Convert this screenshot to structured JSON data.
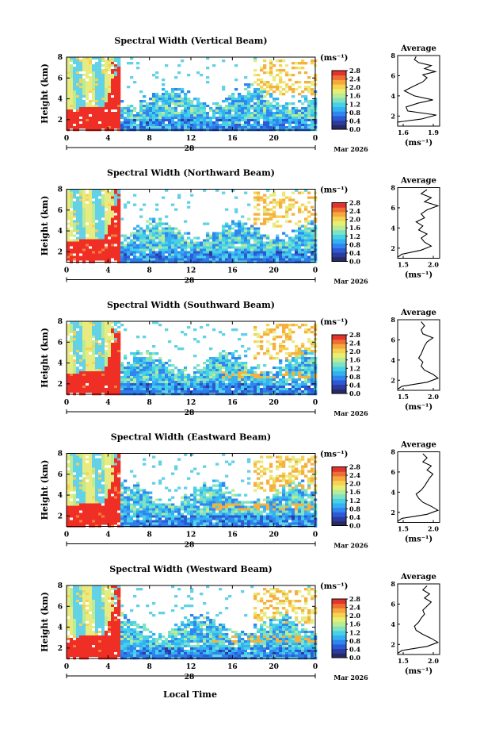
{
  "figure": {
    "xlabel_bottom": "Local Time",
    "average_title": "Average",
    "unit_label": "(ms⁻¹)",
    "date_day": "28",
    "date_month": "Mar 2026"
  },
  "colors": {
    "colorbar": [
      "#262a66",
      "#2d3b9c",
      "#2c5ad6",
      "#2f86ee",
      "#35b0f2",
      "#46d2e6",
      "#7fe3c3",
      "#b9ec95",
      "#e6ef72",
      "#f6d253",
      "#f6a83c",
      "#ee6f33",
      "#e2332c"
    ],
    "red": "#ef2f25",
    "yellow": "#e8ec80",
    "cyan": "#64d2e6",
    "blue": "#2e7de8",
    "orange": "#f6b040"
  },
  "chart_data": [
    {
      "type": "heatmap",
      "title": "Spectral Width (Vertical Beam)",
      "ylabel": "Height (km)",
      "x_ticks": [
        "0",
        "4",
        "8",
        "12",
        "16",
        "20",
        "0"
      ],
      "y_ticks": [
        "2",
        "4",
        "6",
        "8"
      ],
      "xlim": [
        0,
        24
      ],
      "ylim": [
        1,
        8
      ],
      "colorbar": {
        "label": "(ms⁻¹)",
        "ticks": [
          "2.8",
          "2.4",
          "2.0",
          "1.6",
          "1.2",
          "0.8",
          "0.4",
          "0.0"
        ],
        "range": [
          0.0,
          2.8
        ]
      },
      "average": {
        "x_ticks": [
          "1.6",
          "1.9"
        ],
        "xlim": [
          1.5,
          2.0
        ],
        "y_ticks": [
          "2",
          "4",
          "6",
          "8"
        ],
        "xlabel": "(ms⁻¹)",
        "profile": [
          [
            1.45,
            1.1
          ],
          [
            1.5,
            1.4
          ],
          [
            1.78,
            1.7
          ],
          [
            1.96,
            2.1
          ],
          [
            1.62,
            2.5
          ],
          [
            1.6,
            2.9
          ],
          [
            1.75,
            3.3
          ],
          [
            1.92,
            3.6
          ],
          [
            1.7,
            4.0
          ],
          [
            1.58,
            4.5
          ],
          [
            1.7,
            5.0
          ],
          [
            1.8,
            5.4
          ],
          [
            1.85,
            5.8
          ],
          [
            1.8,
            6.1
          ],
          [
            1.95,
            6.4
          ],
          [
            1.82,
            6.7
          ],
          [
            1.9,
            7.0
          ],
          [
            1.75,
            7.3
          ],
          [
            1.7,
            7.6
          ],
          [
            1.72,
            7.9
          ]
        ]
      }
    },
    {
      "type": "heatmap",
      "title": "Spectral Width (Northward Beam)",
      "ylabel": "Height (km)",
      "x_ticks": [
        "0",
        "4",
        "8",
        "12",
        "16",
        "20",
        "0"
      ],
      "y_ticks": [
        "2",
        "4",
        "6",
        "8"
      ],
      "xlim": [
        0,
        24
      ],
      "ylim": [
        1,
        8
      ],
      "colorbar": {
        "label": "(ms⁻¹)",
        "ticks": [
          "2.8",
          "2.4",
          "2.0",
          "1.6",
          "1.2",
          "0.8",
          "0.4",
          "0.0"
        ],
        "range": [
          0.0,
          2.8
        ]
      },
      "average": {
        "x_ticks": [
          "1.5",
          "2.0"
        ],
        "xlim": [
          1.5,
          2.0
        ],
        "y_ticks": [
          "2",
          "4",
          "6",
          "8"
        ],
        "xlabel": "(ms⁻¹)",
        "profile": [
          [
            1.45,
            1.1
          ],
          [
            1.55,
            1.4
          ],
          [
            1.78,
            1.8
          ],
          [
            1.9,
            2.2
          ],
          [
            1.82,
            2.6
          ],
          [
            1.78,
            3.0
          ],
          [
            1.85,
            3.4
          ],
          [
            1.75,
            3.8
          ],
          [
            1.8,
            4.2
          ],
          [
            1.72,
            4.6
          ],
          [
            1.82,
            5.0
          ],
          [
            1.78,
            5.4
          ],
          [
            1.85,
            5.8
          ],
          [
            1.98,
            6.2
          ],
          [
            1.82,
            6.6
          ],
          [
            1.9,
            7.0
          ],
          [
            1.78,
            7.4
          ],
          [
            1.85,
            7.8
          ]
        ]
      }
    },
    {
      "type": "heatmap",
      "title": "Spectral Width (Southward Beam)",
      "ylabel": "Height (km)",
      "x_ticks": [
        "0",
        "4",
        "8",
        "12",
        "16",
        "20",
        "0"
      ],
      "y_ticks": [
        "2",
        "4",
        "6",
        "8"
      ],
      "xlim": [
        0,
        24
      ],
      "ylim": [
        1,
        8
      ],
      "colorbar": {
        "label": "(ms⁻¹)",
        "ticks": [
          "2.8",
          "2.4",
          "2.0",
          "1.6",
          "1.2",
          "0.8",
          "0.4",
          "0.0"
        ],
        "range": [
          0.0,
          2.8
        ]
      },
      "average": {
        "x_ticks": [
          "1.5",
          "2.0"
        ],
        "xlim": [
          1.5,
          2.0
        ],
        "y_ticks": [
          "2",
          "4",
          "6",
          "8"
        ],
        "xlabel": "(ms⁻¹)",
        "profile": [
          [
            1.45,
            1.1
          ],
          [
            1.55,
            1.4
          ],
          [
            1.85,
            1.8
          ],
          [
            1.98,
            2.2
          ],
          [
            1.92,
            2.6
          ],
          [
            1.82,
            3.0
          ],
          [
            1.78,
            3.4
          ],
          [
            1.8,
            3.8
          ],
          [
            1.75,
            4.2
          ],
          [
            1.78,
            4.6
          ],
          [
            1.8,
            5.0
          ],
          [
            1.82,
            5.4
          ],
          [
            1.85,
            5.8
          ],
          [
            1.92,
            6.2
          ],
          [
            1.8,
            6.6
          ],
          [
            1.78,
            7.0
          ],
          [
            1.82,
            7.4
          ],
          [
            1.78,
            7.8
          ]
        ]
      }
    },
    {
      "type": "heatmap",
      "title": "Spectral Width (Eastward Beam)",
      "ylabel": "Height (km)",
      "x_ticks": [
        "0",
        "4",
        "8",
        "12",
        "16",
        "20",
        "0"
      ],
      "y_ticks": [
        "2",
        "4",
        "6",
        "8"
      ],
      "xlim": [
        0,
        24
      ],
      "ylim": [
        1,
        8
      ],
      "colorbar": {
        "label": "(ms⁻¹)",
        "ticks": [
          "2.8",
          "2.4",
          "2.0",
          "1.6",
          "1.2",
          "0.8",
          "0.4",
          "0.0"
        ],
        "range": [
          0.0,
          2.8
        ]
      },
      "average": {
        "x_ticks": [
          "1.5",
          "2.0"
        ],
        "xlim": [
          1.5,
          2.0
        ],
        "y_ticks": [
          "2",
          "4",
          "6",
          "8"
        ],
        "xlabel": "(ms⁻¹)",
        "profile": [
          [
            1.45,
            1.1
          ],
          [
            1.55,
            1.4
          ],
          [
            1.85,
            1.8
          ],
          [
            1.98,
            2.2
          ],
          [
            1.9,
            2.6
          ],
          [
            1.8,
            3.0
          ],
          [
            1.75,
            3.4
          ],
          [
            1.72,
            3.8
          ],
          [
            1.78,
            4.2
          ],
          [
            1.82,
            4.6
          ],
          [
            1.85,
            5.0
          ],
          [
            1.88,
            5.4
          ],
          [
            1.92,
            5.8
          ],
          [
            1.85,
            6.2
          ],
          [
            1.9,
            6.6
          ],
          [
            1.8,
            7.0
          ],
          [
            1.85,
            7.4
          ],
          [
            1.8,
            7.8
          ]
        ]
      }
    },
    {
      "type": "heatmap",
      "title": "Spectral Width (Westward Beam)",
      "ylabel": "Height (km)",
      "x_ticks": [
        "0",
        "4",
        "8",
        "12",
        "16",
        "20",
        "0"
      ],
      "y_ticks": [
        "2",
        "4",
        "6",
        "8"
      ],
      "xlim": [
        0,
        24
      ],
      "ylim": [
        1,
        8
      ],
      "colorbar": {
        "label": "(ms⁻¹)",
        "ticks": [
          "2.8",
          "2.4",
          "2.0",
          "1.6",
          "1.2",
          "0.8",
          "0.4",
          "0.0"
        ],
        "range": [
          0.0,
          2.8
        ]
      },
      "average": {
        "x_ticks": [
          "1.5",
          "2.0"
        ],
        "xlim": [
          1.5,
          2.0
        ],
        "y_ticks": [
          "2",
          "4",
          "6",
          "8"
        ],
        "xlabel": "(ms⁻¹)",
        "profile": [
          [
            1.45,
            1.1
          ],
          [
            1.55,
            1.4
          ],
          [
            1.85,
            1.8
          ],
          [
            1.98,
            2.2
          ],
          [
            1.9,
            2.6
          ],
          [
            1.8,
            3.0
          ],
          [
            1.72,
            3.4
          ],
          [
            1.7,
            3.8
          ],
          [
            1.75,
            4.2
          ],
          [
            1.78,
            4.6
          ],
          [
            1.82,
            5.0
          ],
          [
            1.8,
            5.4
          ],
          [
            1.85,
            5.8
          ],
          [
            1.9,
            6.2
          ],
          [
            1.82,
            6.6
          ],
          [
            1.88,
            7.0
          ],
          [
            1.8,
            7.4
          ],
          [
            1.85,
            7.8
          ]
        ]
      }
    }
  ]
}
